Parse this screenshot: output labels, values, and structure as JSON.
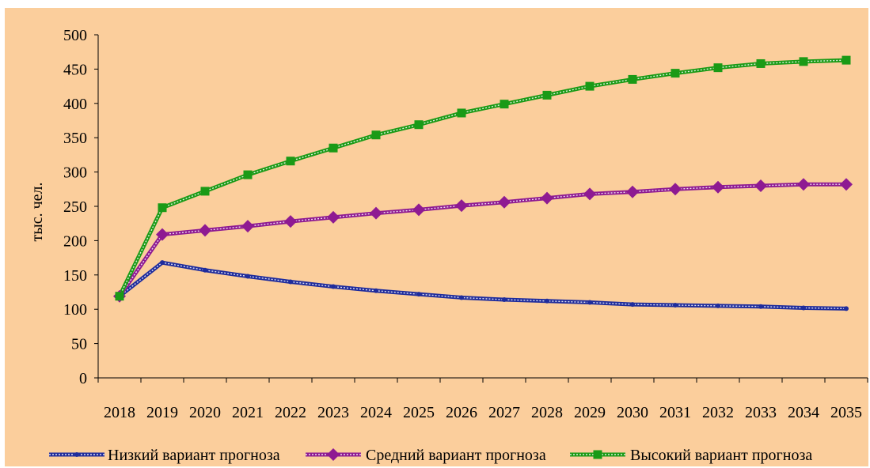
{
  "chart_data": {
    "type": "line",
    "title": "",
    "xlabel": "",
    "ylabel": "тыс. чел.",
    "ylim": [
      0,
      500
    ],
    "yticks": [
      0,
      50,
      100,
      150,
      200,
      250,
      300,
      350,
      400,
      450,
      500
    ],
    "grid": false,
    "legend": "bottom",
    "categories": [
      "2018",
      "2019",
      "2020",
      "2021",
      "2022",
      "2023",
      "2024",
      "2025",
      "2026",
      "2027",
      "2028",
      "2029",
      "2030",
      "2031",
      "2032",
      "2033",
      "2034",
      "2035"
    ],
    "series": [
      {
        "name": "Низкий вариант прогноза",
        "color": "#1F2C9C",
        "marker": "circle",
        "values": [
          119,
          168,
          157,
          148,
          140,
          133,
          127,
          122,
          117,
          114,
          112,
          110,
          107,
          106,
          105,
          104,
          102,
          101
        ]
      },
      {
        "name": "Средний вариант прогноза",
        "color": "#8E1A92",
        "marker": "diamond",
        "values": [
          119,
          209,
          215,
          221,
          228,
          234,
          240,
          245,
          251,
          256,
          262,
          268,
          271,
          275,
          278,
          280,
          282,
          282
        ]
      },
      {
        "name": "Высокий вариант прогноза",
        "color": "#1A9A16",
        "marker": "square",
        "values": [
          119,
          248,
          272,
          296,
          316,
          335,
          354,
          369,
          386,
          399,
          412,
          425,
          435,
          444,
          452,
          458,
          461,
          463
        ]
      }
    ]
  }
}
